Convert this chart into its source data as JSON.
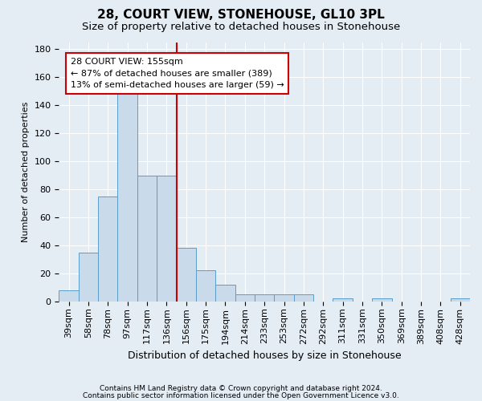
{
  "title1": "28, COURT VIEW, STONEHOUSE, GL10 3PL",
  "title2": "Size of property relative to detached houses in Stonehouse",
  "xlabel": "Distribution of detached houses by size in Stonehouse",
  "ylabel": "Number of detached properties",
  "categories": [
    "39sqm",
    "58sqm",
    "78sqm",
    "97sqm",
    "117sqm",
    "136sqm",
    "156sqm",
    "175sqm",
    "194sqm",
    "214sqm",
    "233sqm",
    "253sqm",
    "272sqm",
    "292sqm",
    "311sqm",
    "331sqm",
    "350sqm",
    "369sqm",
    "389sqm",
    "408sqm",
    "428sqm"
  ],
  "values": [
    8,
    35,
    75,
    150,
    90,
    90,
    38,
    22,
    12,
    5,
    5,
    5,
    5,
    0,
    2,
    0,
    2,
    0,
    0,
    0,
    2
  ],
  "bar_color": "#c9daea",
  "bar_edge_color": "#5b9dc9",
  "vline_x": 5.5,
  "vline_color": "#cc0000",
  "annotation_line1": "28 COURT VIEW: 155sqm",
  "annotation_line2": "← 87% of detached houses are smaller (389)",
  "annotation_line3": "13% of semi-detached houses are larger (59) →",
  "annotation_box_facecolor": "#ffffff",
  "annotation_box_edgecolor": "#cc0000",
  "footer1": "Contains HM Land Registry data © Crown copyright and database right 2024.",
  "footer2": "Contains public sector information licensed under the Open Government Licence v3.0.",
  "ylim": [
    0,
    185
  ],
  "yticks": [
    0,
    20,
    40,
    60,
    80,
    100,
    120,
    140,
    160,
    180
  ],
  "bg_color": "#e4ecf4",
  "grid_color": "#ffffff",
  "title1_fontsize": 11,
  "title2_fontsize": 9.5,
  "ylabel_fontsize": 8,
  "xlabel_fontsize": 9,
  "tick_fontsize": 8,
  "annot_fontsize": 8,
  "footer_fontsize": 6.5
}
